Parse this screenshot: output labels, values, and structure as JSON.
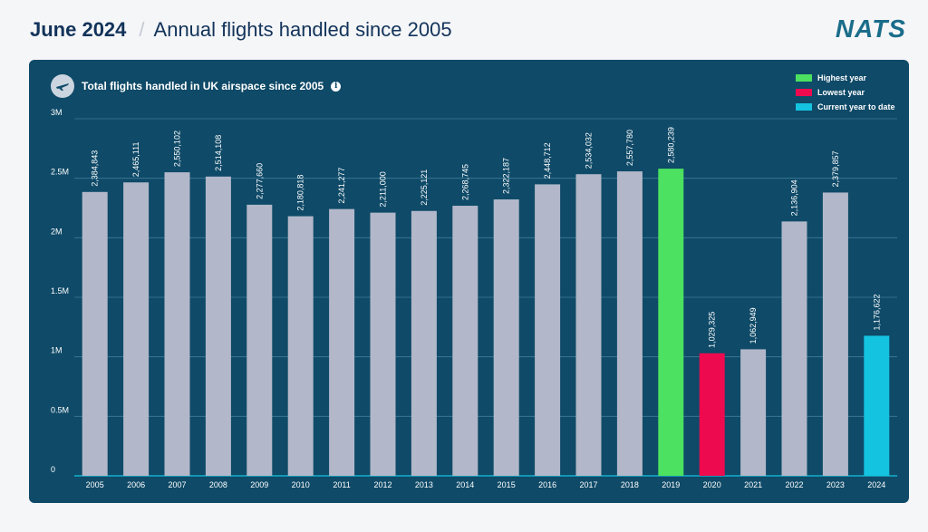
{
  "header": {
    "month": "June 2024",
    "separator": "/",
    "subtitle": "Annual flights handled since 2005"
  },
  "brand": {
    "logo_text": "NATS"
  },
  "panel": {
    "title": "Total flights handled in UK airspace since 2005",
    "title_icon": "plane-icon",
    "info_icon": "info-icon"
  },
  "colors": {
    "panel_bg": "#0f4a68",
    "bar_default": "#b2b8c9",
    "highest": "#4ce160",
    "lowest": "#ee0a4f",
    "current": "#14c3e0",
    "header_text": "#12335a",
    "logo": "#1a6d8a"
  },
  "chart_data": {
    "type": "bar",
    "title": "Total flights handled in UK airspace since 2005",
    "categories": [
      "2005",
      "2006",
      "2007",
      "2008",
      "2009",
      "2010",
      "2011",
      "2012",
      "2013",
      "2014",
      "2015",
      "2016",
      "2017",
      "2018",
      "2019",
      "2020",
      "2021",
      "2022",
      "2023",
      "2024"
    ],
    "values": [
      2384843,
      2465111,
      2550102,
      2514108,
      2277660,
      2180818,
      2241277,
      2211000,
      2225121,
      2268745,
      2322187,
      2448712,
      2534032,
      2557780,
      2580239,
      1029325,
      1062949,
      2136904,
      2379857,
      1176622
    ],
    "value_labels": [
      "2,384,843",
      "2,465,111",
      "2,550,102",
      "2,514,108",
      "2,277,660",
      "2,180,818",
      "2,241,277",
      "2,211,000",
      "2,225,121",
      "2,268,745",
      "2,322,187",
      "2,448,712",
      "2,534,032",
      "2,557,780",
      "2,580,239",
      "1,029,325",
      "1,062,949",
      "2,136,904",
      "2,379,857",
      "1,176,622"
    ],
    "highlights": {
      "2019": "highest",
      "2020": "lowest",
      "2024": "current"
    },
    "ylim": [
      0,
      3000000
    ],
    "yticks": [
      0,
      500000,
      1000000,
      1500000,
      2000000,
      2500000,
      3000000
    ],
    "ytick_labels": [
      "0",
      "0.5M",
      "1M",
      "1.5M",
      "2M",
      "2.5M",
      "3M"
    ],
    "grid": true,
    "legend_position": "top-right",
    "legend": [
      {
        "key": "highest",
        "label": "Highest year"
      },
      {
        "key": "lowest",
        "label": "Lowest year"
      },
      {
        "key": "current",
        "label": "Current year to date"
      }
    ]
  }
}
